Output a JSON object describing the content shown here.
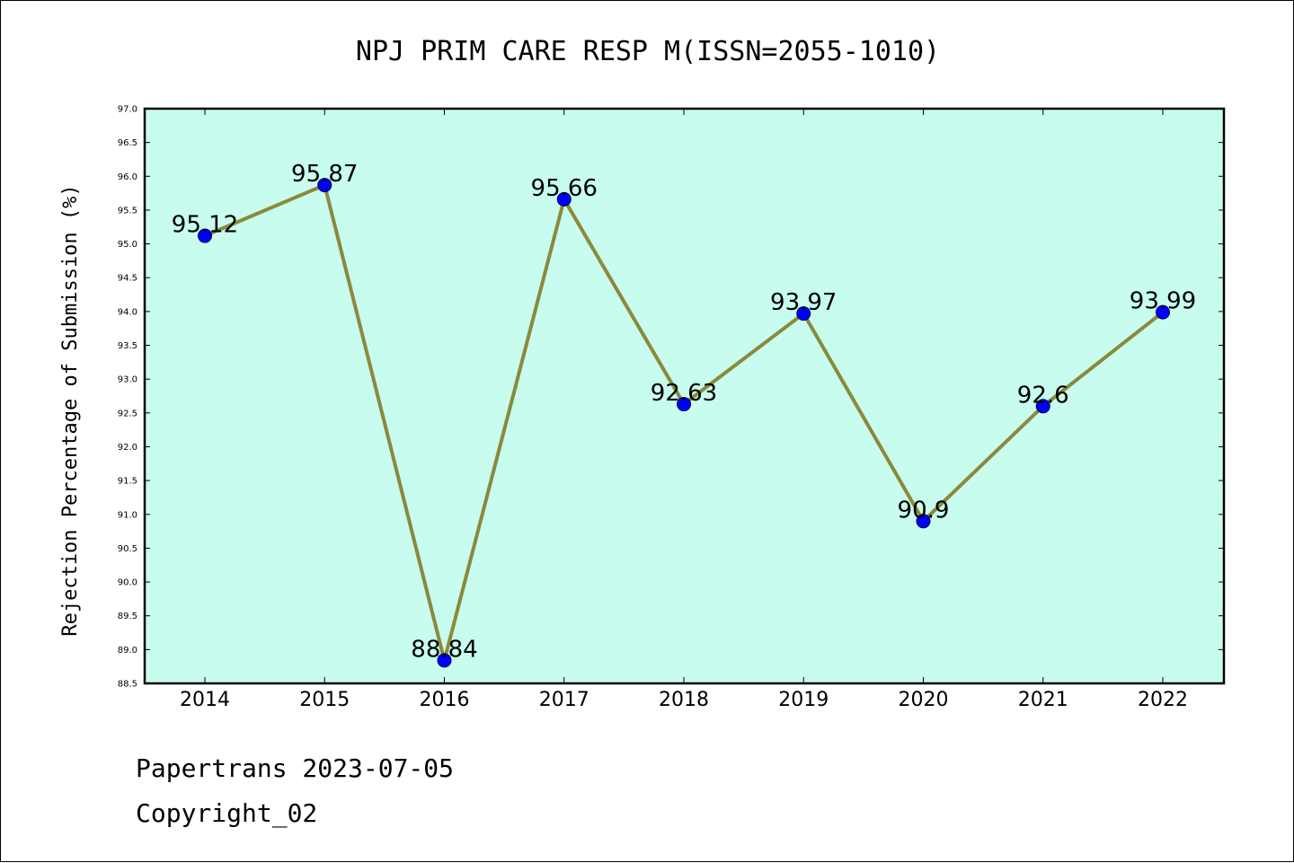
{
  "chart_data": {
    "type": "line",
    "title": "NPJ PRIM CARE RESP M(ISSN=2055-1010)",
    "xlabel": "",
    "ylabel": "Rejection Percentage of Submission (%)",
    "categories": [
      "2014",
      "2015",
      "2016",
      "2017",
      "2018",
      "2019",
      "2020",
      "2021",
      "2022"
    ],
    "values": [
      95.12,
      95.87,
      88.84,
      95.66,
      92.63,
      93.97,
      90.9,
      92.6,
      93.99
    ],
    "data_labels": [
      "95.12",
      "95.87",
      "88.84",
      "95.66",
      "92.63",
      "93.97",
      "90.9",
      "92.6",
      "93.99"
    ],
    "ylim": [
      88.5,
      97.0
    ],
    "yticks": [
      "88.5",
      "89.0",
      "89.5",
      "90.0",
      "90.5",
      "91.0",
      "91.5",
      "92.0",
      "92.5",
      "93.0",
      "93.5",
      "94.0",
      "94.5",
      "95.0",
      "95.5",
      "96.0",
      "96.5",
      "97.0"
    ],
    "grid": false,
    "colors": {
      "plot_background": "#c8fcee",
      "line": "#8a8a3a",
      "marker": "#0000ff"
    }
  },
  "footer": {
    "line1": "Papertrans 2023-07-05",
    "line2": "Copyright_02"
  }
}
